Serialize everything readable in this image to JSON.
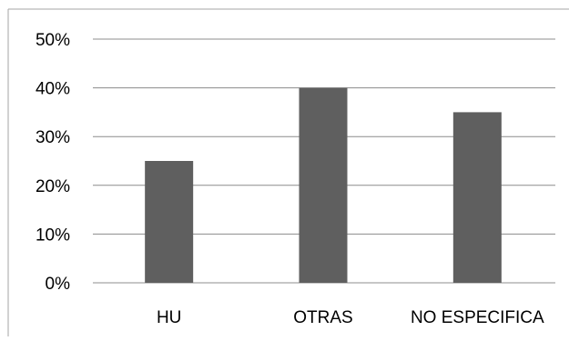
{
  "chart_data": {
    "type": "bar",
    "title": "",
    "xlabel": "",
    "ylabel": "",
    "categories": [
      "HU",
      "OTRAS",
      "NO ESPECIFICA"
    ],
    "values": [
      25,
      40,
      35
    ],
    "unit": "%",
    "ylim": [
      0,
      50
    ],
    "yticks": [
      "0%",
      "10%",
      "20%",
      "30%",
      "40%",
      "50%"
    ],
    "grid": true,
    "legend": "none",
    "colors": {
      "bar": "#5f5f5f",
      "grid": "#8c8c8c",
      "border": "#a6a6a6",
      "text": "#000000"
    }
  }
}
